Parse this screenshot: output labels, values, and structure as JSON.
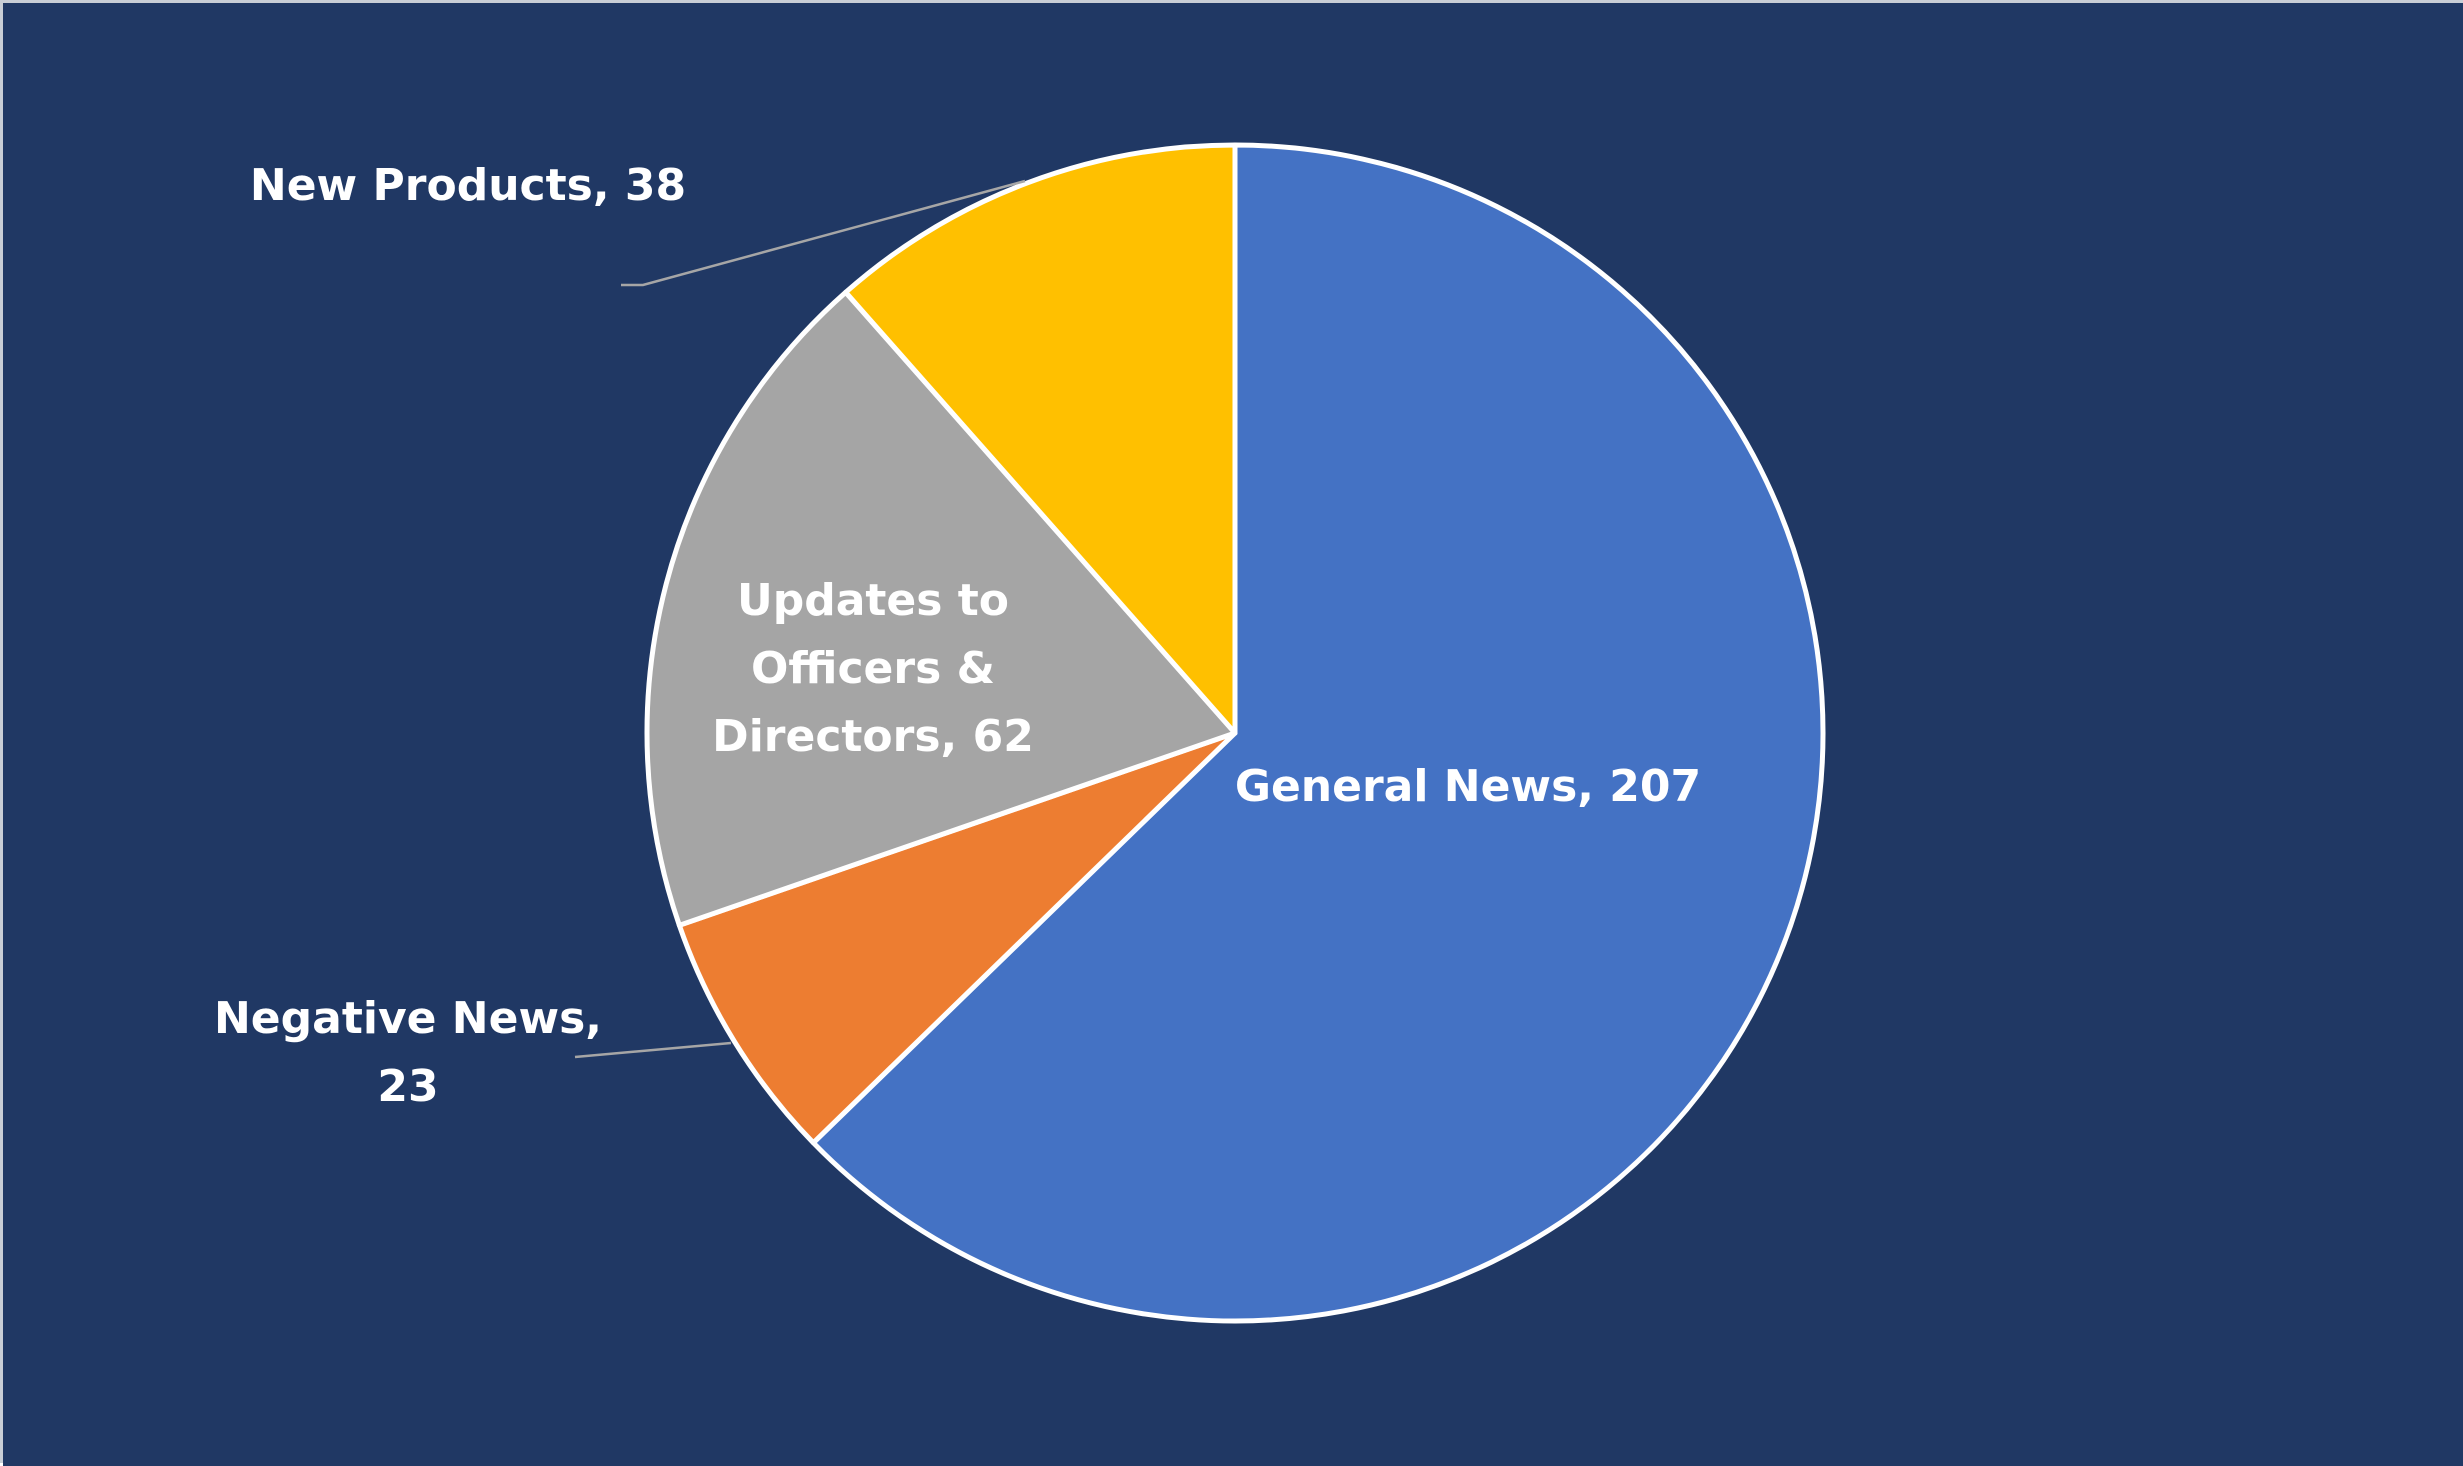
{
  "colors": {
    "background": "#203864",
    "slice_border": "#ffffff",
    "leader_line": "#a6a6a6",
    "label_text": "#ffffff"
  },
  "chart_data": {
    "type": "pie",
    "title": "",
    "start_angle_deg": 0,
    "direction": "clockwise",
    "slices": [
      {
        "label": "General News",
        "value": 207,
        "color": "#4472c4",
        "label_text": [
          "General News, 207"
        ],
        "label_placement": "inside"
      },
      {
        "label": "Negative News",
        "value": 23,
        "color": "#ed7d31",
        "label_text": [
          "Negative News,",
          "23"
        ],
        "label_placement": "outside-left"
      },
      {
        "label": "Updates to Officers & Directors",
        "value": 62,
        "color": "#a5a5a5",
        "label_text": [
          "Updates to",
          "Officers &",
          "Directors, 62"
        ],
        "label_placement": "inside"
      },
      {
        "label": "New Products",
        "value": 38,
        "color": "#ffc000",
        "label_text": [
          "New Products, 38"
        ],
        "label_placement": "outside-top-left"
      }
    ]
  }
}
